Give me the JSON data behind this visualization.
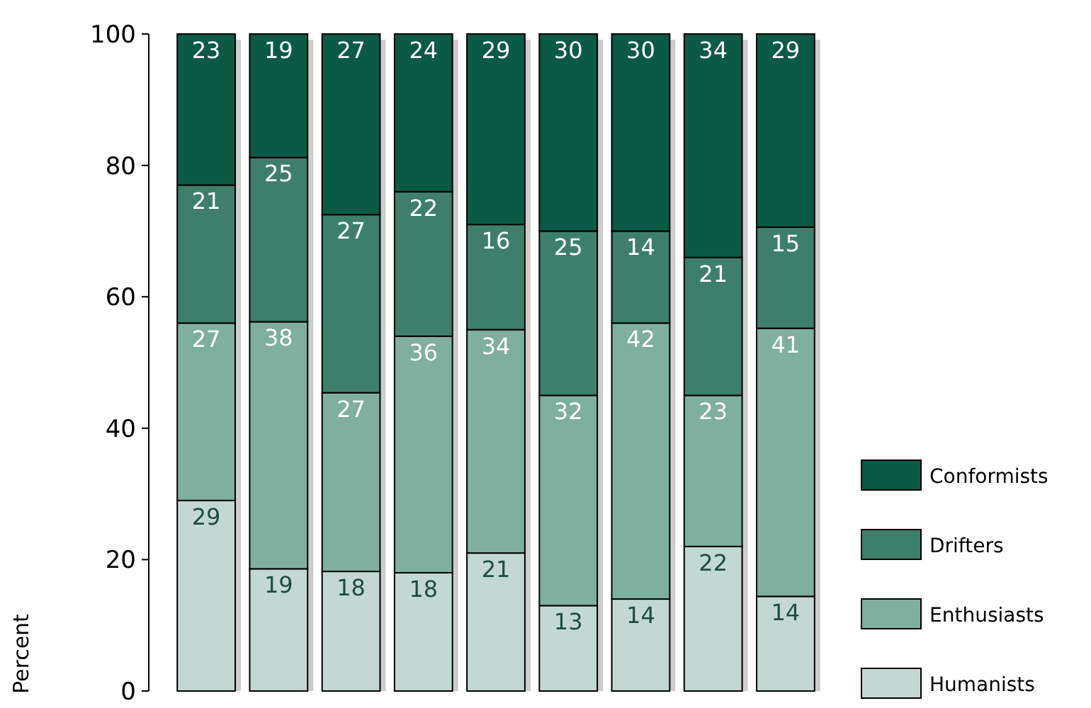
{
  "chart_data": {
    "type": "bar",
    "stacked": true,
    "ylabel": "Percent",
    "categories": [
      null,
      null,
      null,
      null,
      null,
      null,
      null,
      null,
      null
    ],
    "ylim": [
      0,
      100
    ],
    "yticks": [
      0,
      20,
      40,
      60,
      80,
      100
    ],
    "legend": "right",
    "grid": false,
    "series": [
      {
        "name": "Humanists",
        "color": "#c3d8d2",
        "values": [
          29,
          18.6,
          18.2,
          18,
          21,
          13,
          14,
          22,
          14.4
        ],
        "value_labels": [
          "29",
          "19",
          "18",
          "18",
          "21",
          "13",
          "14",
          "22",
          "14"
        ]
      },
      {
        "name": "Enthusiasts",
        "color": "#7faf9f",
        "values": [
          27,
          37.6,
          27.2,
          36,
          34,
          32,
          42,
          23,
          40.8
        ],
        "value_labels": [
          "27",
          "38",
          "27",
          "36",
          "34",
          "32",
          "42",
          "23",
          "41"
        ]
      },
      {
        "name": "Drifters",
        "color": "#3d7f6c",
        "values": [
          21,
          25,
          27.1,
          22,
          16,
          25,
          14,
          21,
          15.4
        ],
        "value_labels": [
          "21",
          "25",
          "27",
          "22",
          "16",
          "25",
          "14",
          "21",
          "15"
        ]
      },
      {
        "name": "Conformists",
        "color": "#0b5a46",
        "values": [
          23,
          18.8,
          27.5,
          24,
          29,
          30,
          30,
          34,
          29.4
        ],
        "value_labels": [
          "23",
          "19",
          "27",
          "24",
          "29",
          "30",
          "30",
          "34",
          "29"
        ]
      }
    ]
  }
}
